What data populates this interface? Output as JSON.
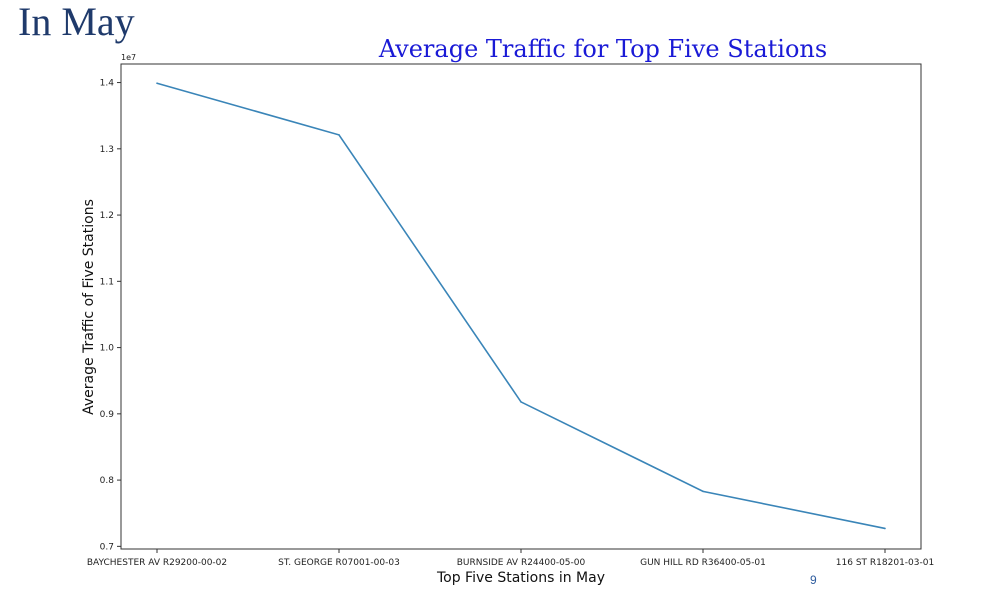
{
  "slide": {
    "title": "In May",
    "page_number": "9"
  },
  "colors": {
    "slide_title": "#1f3a6b",
    "chart_title": "#1a1ad6",
    "line": "#3a85b8",
    "axes": "#333333"
  },
  "chart_data": {
    "type": "line",
    "title": "Average Traffic for Top Five Stations",
    "xlabel": "Top Five Stations in May",
    "ylabel": "Average Traffic of Five Stations",
    "y_exponent_label": "1e7",
    "categories": [
      "BAYCHESTER AV R29200-00-02",
      "ST. GEORGE R07001-00-03",
      "BURNSIDE AV R24400-05-00",
      "GUN HILL RD R36400-05-01",
      "116 ST R18201-03-01"
    ],
    "series": [
      {
        "values": [
          13990000,
          13210000,
          9180000,
          7830000,
          7270000
        ]
      }
    ],
    "ylim": [
      6960000,
      14280000
    ],
    "yticks": [
      0.7,
      0.8,
      0.9,
      1.0,
      1.1,
      1.2,
      1.3,
      1.4
    ],
    "grid": false,
    "legend": "none"
  }
}
